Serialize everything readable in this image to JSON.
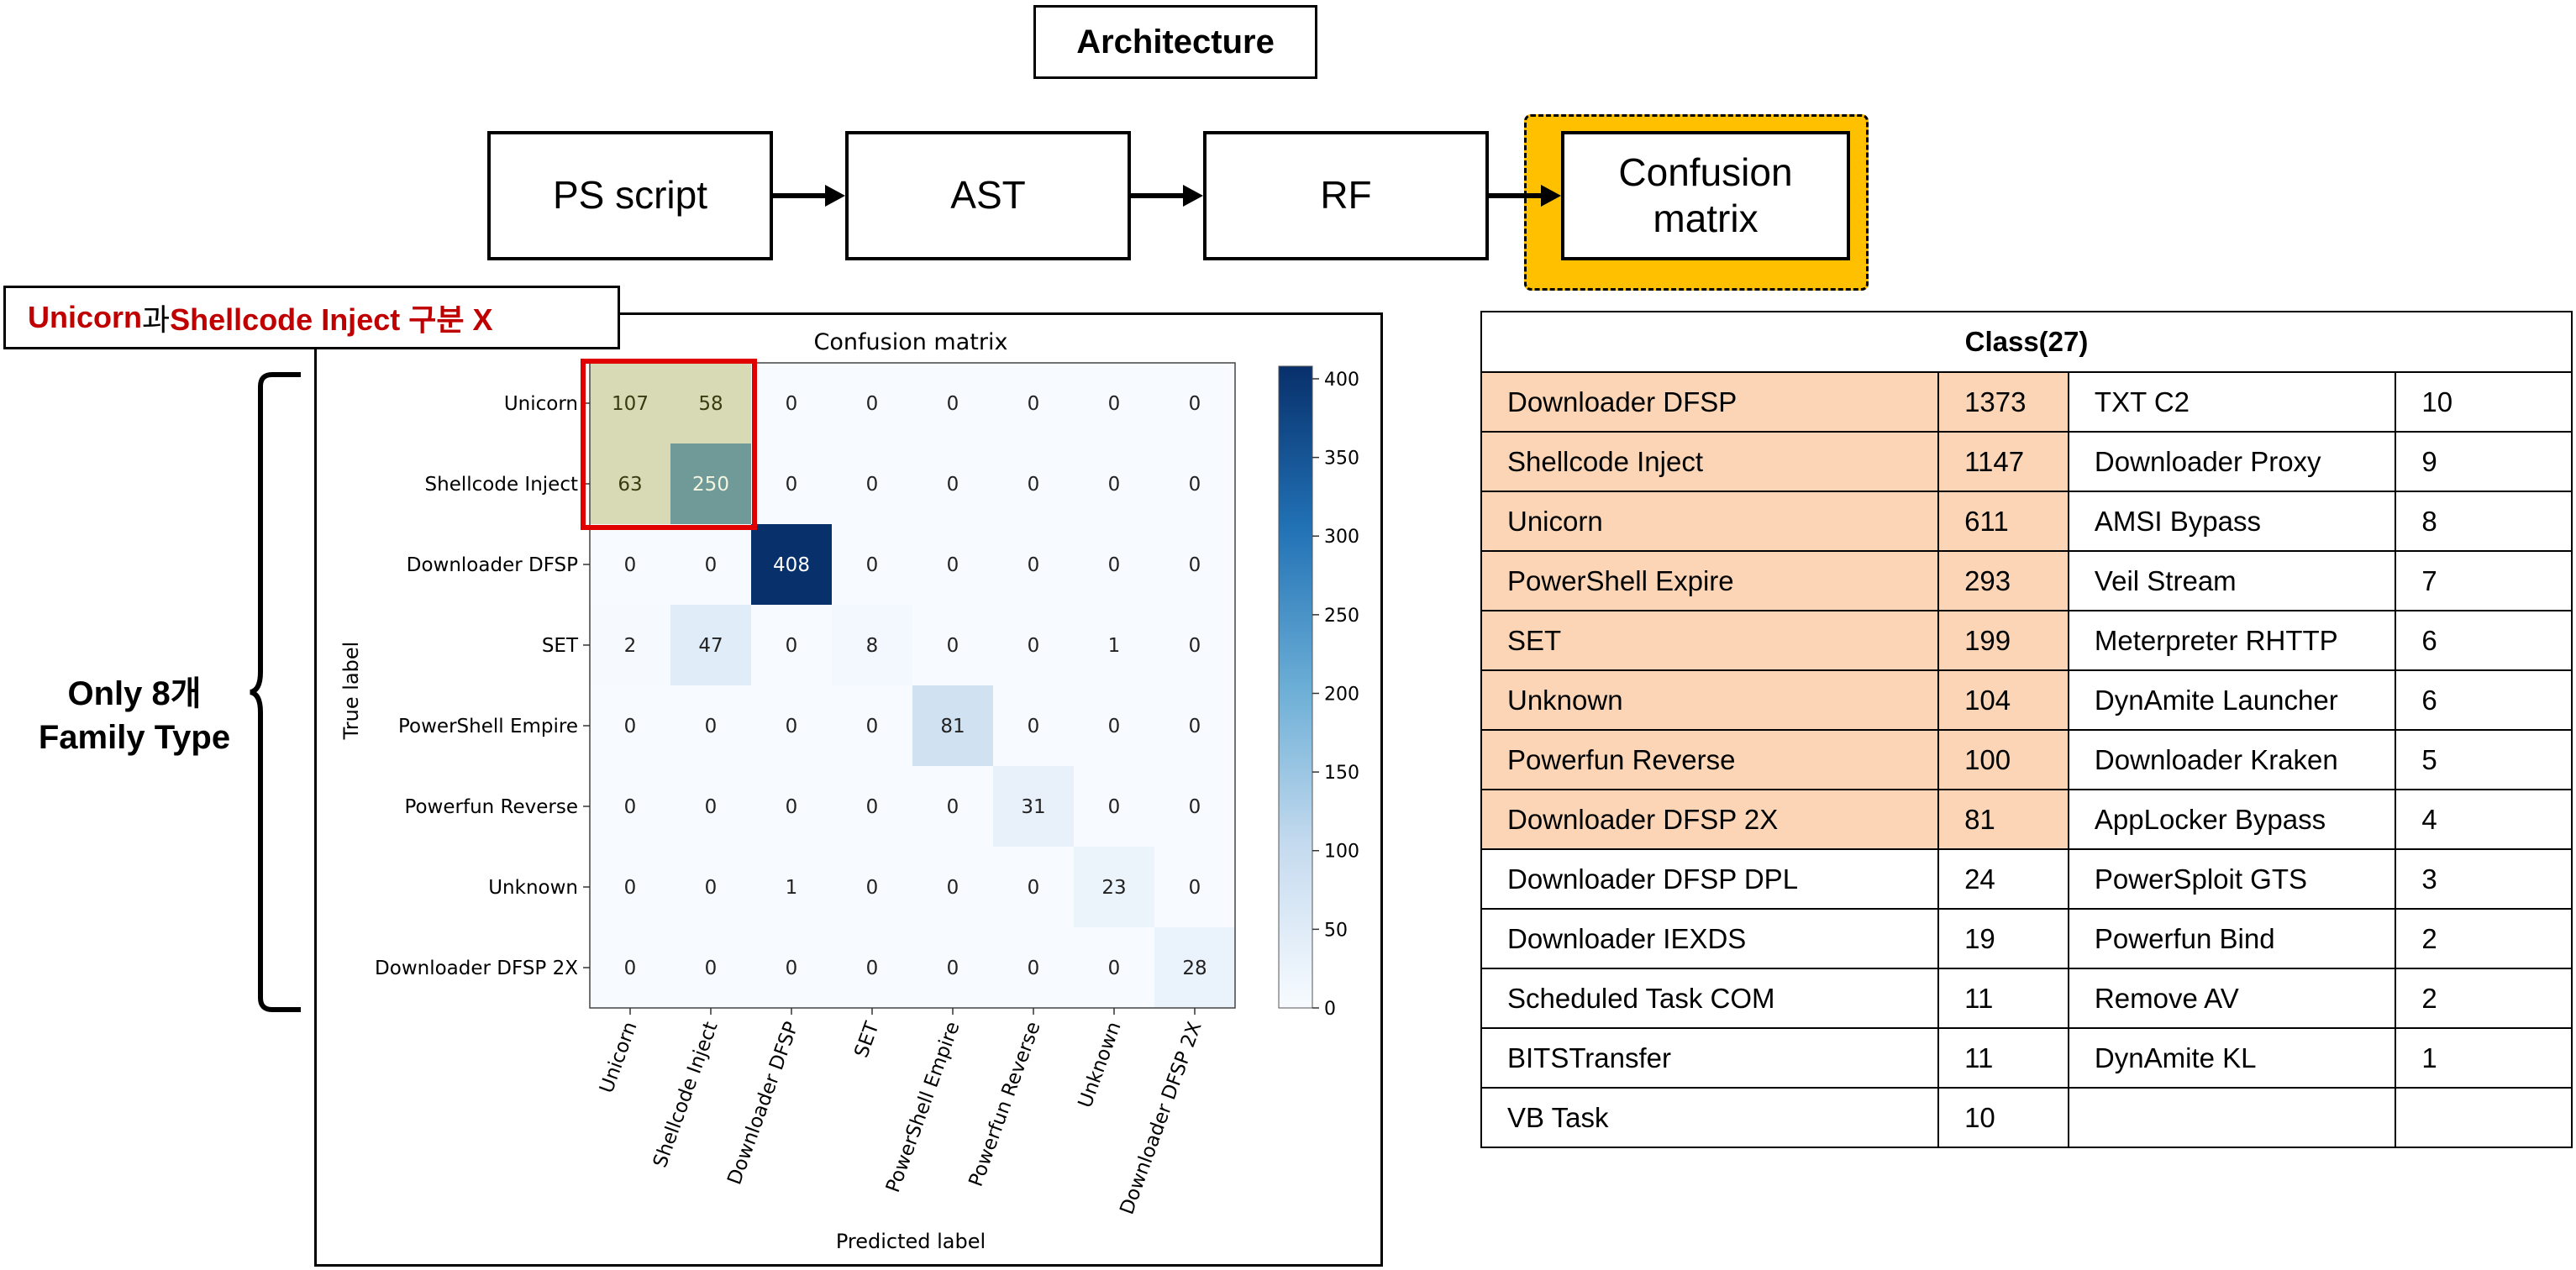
{
  "architecture": {
    "title": "Architecture",
    "steps": [
      "PS script",
      "AST",
      "RF",
      "Confusion matrix"
    ]
  },
  "note": {
    "part1": "Unicorn",
    "part2": "과 ",
    "part3": "Shellcode Inject 구분 X"
  },
  "family_label": {
    "line1": "Only 8개",
    "line2": "Family Type"
  },
  "colors": {
    "highlight": "#ffc000",
    "red": "#c00000",
    "row_highlight": "#fbd5b5",
    "cm_dark": "#08306b"
  },
  "chart_data": {
    "type": "heatmap",
    "title": "Confusion matrix",
    "xlabel": "Predicted label",
    "ylabel": "True label",
    "labels": [
      "Unicorn",
      "Shellcode Inject",
      "Downloader DFSP",
      "SET",
      "PowerShell Empire",
      "Powerfun Reverse",
      "Unknown",
      "Downloader DFSP 2X"
    ],
    "matrix": [
      [
        107,
        58,
        0,
        0,
        0,
        0,
        0,
        0
      ],
      [
        63,
        250,
        0,
        0,
        0,
        0,
        0,
        0
      ],
      [
        0,
        0,
        408,
        0,
        0,
        0,
        0,
        0
      ],
      [
        2,
        47,
        0,
        8,
        0,
        0,
        1,
        0
      ],
      [
        0,
        0,
        0,
        0,
        81,
        0,
        0,
        0
      ],
      [
        0,
        0,
        0,
        0,
        0,
        31,
        0,
        0
      ],
      [
        0,
        0,
        1,
        0,
        0,
        0,
        23,
        0
      ],
      [
        0,
        0,
        0,
        0,
        0,
        0,
        0,
        28
      ]
    ],
    "colorbar_ticks": [
      0,
      50,
      100,
      150,
      200,
      250,
      300,
      350,
      400
    ],
    "colorbar_max": 408
  },
  "table": {
    "header": "Class(27)",
    "rows": [
      {
        "c1": "Downloader DFSP",
        "n1": "1373",
        "c2": "TXT C2",
        "n2": "10",
        "hl": true
      },
      {
        "c1": "Shellcode Inject",
        "n1": "1147",
        "c2": "Downloader Proxy",
        "n2": "9",
        "hl": true
      },
      {
        "c1": "Unicorn",
        "n1": "611",
        "c2": "AMSI Bypass",
        "n2": "8",
        "hl": true
      },
      {
        "c1": "PowerShell Expire",
        "n1": "293",
        "c2": "Veil Stream",
        "n2": "7",
        "hl": true
      },
      {
        "c1": "SET",
        "n1": "199",
        "c2": "Meterpreter RHTTP",
        "n2": "6",
        "hl": true
      },
      {
        "c1": "Unknown",
        "n1": "104",
        "c2": "DynAmite Launcher",
        "n2": "6",
        "hl": true
      },
      {
        "c1": "Powerfun Reverse",
        "n1": "100",
        "c2": "Downloader Kraken",
        "n2": "5",
        "hl": true
      },
      {
        "c1": "Downloader DFSP 2X",
        "n1": "81",
        "c2": "AppLocker Bypass",
        "n2": "4",
        "hl": true
      },
      {
        "c1": "Downloader DFSP DPL",
        "n1": "24",
        "c2": "PowerSploit GTS",
        "n2": "3",
        "hl": false
      },
      {
        "c1": "Downloader IEXDS",
        "n1": "19",
        "c2": "Powerfun Bind",
        "n2": "2",
        "hl": false
      },
      {
        "c1": "Scheduled Task COM",
        "n1": "11",
        "c2": "Remove AV",
        "n2": "2",
        "hl": false
      },
      {
        "c1": "BITSTransfer",
        "n1": "11",
        "c2": "DynAmite KL",
        "n2": "1",
        "hl": false
      },
      {
        "c1": "VB Task",
        "n1": "10",
        "c2": "",
        "n2": "",
        "hl": false
      }
    ]
  }
}
